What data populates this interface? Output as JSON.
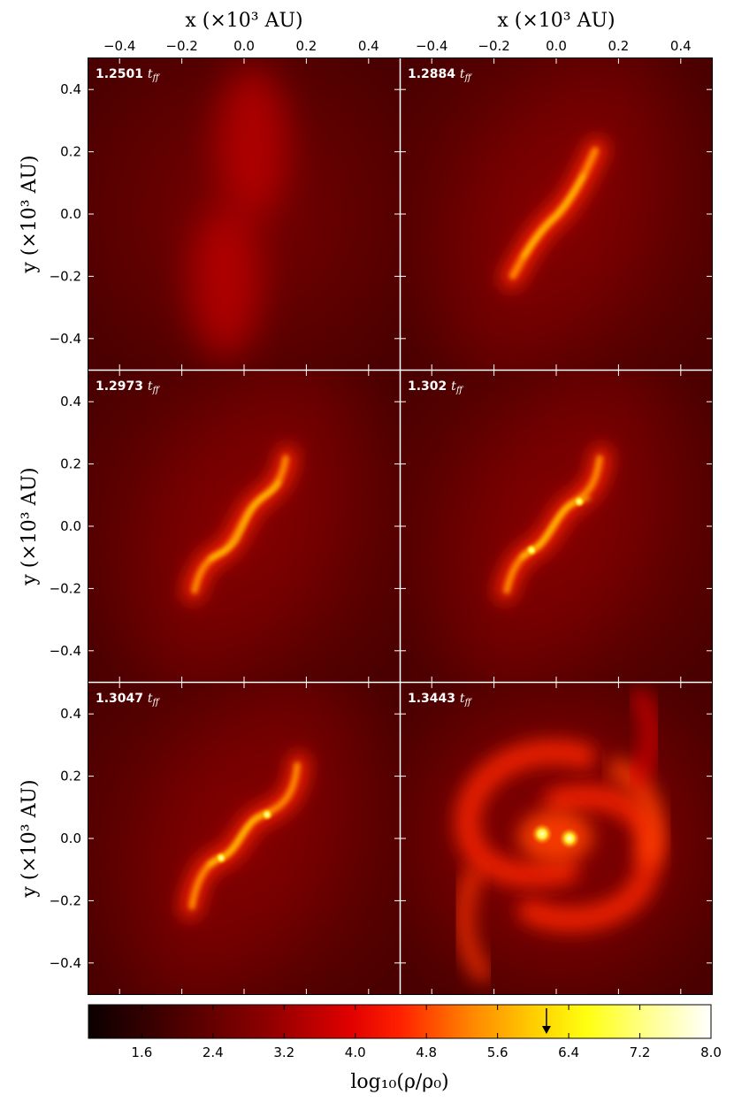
{
  "chart_data": {
    "type": "heatmap",
    "layout": "3 rows x 2 columns",
    "x_axis_label": "x (×10³ AU)",
    "y_axis_label": "y (×10³ AU)",
    "xlim": [
      -0.5,
      0.5
    ],
    "ylim": [
      -0.5,
      0.5
    ],
    "x_ticks": [
      "−0.4",
      "−0.2",
      "0.0",
      "0.2",
      "0.4"
    ],
    "y_ticks": [
      "0.4",
      "0.2",
      "0.0",
      "−0.2",
      "−0.4"
    ],
    "x_tick_values": [
      -0.4,
      -0.2,
      0.0,
      0.2,
      0.4
    ],
    "y_tick_values": [
      0.4,
      0.2,
      0.0,
      -0.2,
      -0.4
    ],
    "panels": [
      {
        "time": "1.2501",
        "unit": "ff",
        "structure": "two diffuse blobs"
      },
      {
        "time": "1.2884",
        "unit": "ff",
        "structure": "elongated filament"
      },
      {
        "time": "1.2973",
        "unit": "ff",
        "structure": "S-shaped filament"
      },
      {
        "time": "1.302",
        "unit": "ff",
        "structure": "S-shaped filament with two knots"
      },
      {
        "time": "1.3047",
        "unit": "ff",
        "structure": "S-shaped filament with two knots"
      },
      {
        "time": "1.3443",
        "unit": "ff",
        "structure": "binary with spiral arms"
      }
    ],
    "colorbar": {
      "label": "log₁₀(ρ/ρ₀)",
      "range": [
        1.0,
        8.0
      ],
      "ticks": [
        "1.6",
        "2.4",
        "3.2",
        "4.0",
        "4.8",
        "5.6",
        "6.4",
        "7.2",
        "8.0"
      ],
      "tick_values": [
        1.6,
        2.4,
        3.2,
        4.0,
        4.8,
        5.6,
        6.4,
        7.2,
        8.0
      ],
      "marker_value": 6.15,
      "colormap": "hot"
    },
    "colors": {
      "background": "#560000",
      "panel_edge": "#ffffff",
      "time_label": "#ffffff"
    }
  }
}
